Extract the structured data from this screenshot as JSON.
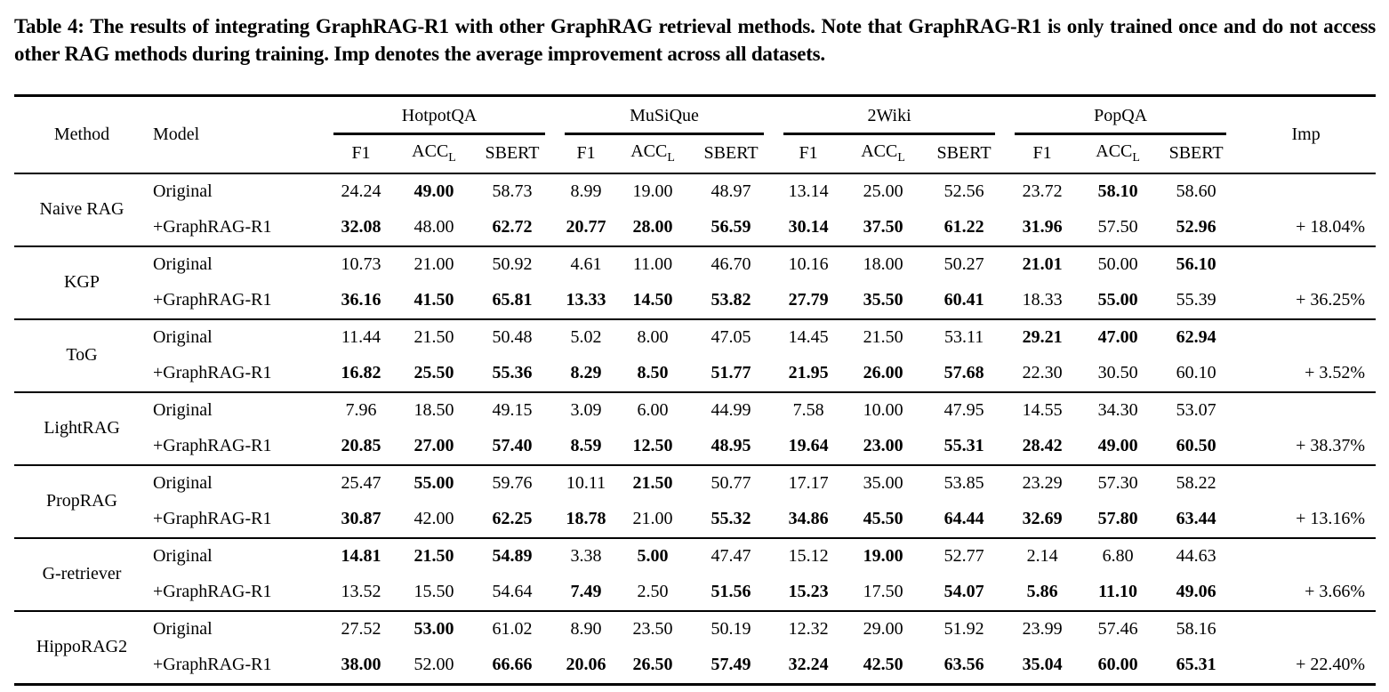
{
  "caption": "Table 4: The results of integrating GraphRAG-R1 with other GraphRAG retrieval methods. Note that GraphRAG-R1 is only trained once and do not access other RAG methods during training. Imp denotes the average improvement across all datasets.",
  "table": {
    "header": {
      "method": "Method",
      "model": "Model",
      "imp": "Imp",
      "groups": [
        {
          "label": "HotpotQA"
        },
        {
          "label": "MuSiQue"
        },
        {
          "label": "2Wiki"
        },
        {
          "label": "PopQA"
        }
      ],
      "sub_columns": [
        {
          "text": "F1",
          "sub": ""
        },
        {
          "text": "ACC",
          "sub": "L"
        },
        {
          "text": "SBERT",
          "sub": ""
        }
      ]
    },
    "rows": [
      {
        "method": "Naive RAG",
        "models": [
          {
            "label": "Original",
            "values": [
              "24.24",
              "49.00",
              "58.73",
              "8.99",
              "19.00",
              "48.97",
              "13.14",
              "25.00",
              "52.56",
              "23.72",
              "58.10",
              "58.60"
            ],
            "bold": [
              0,
              1,
              0,
              0,
              0,
              0,
              0,
              0,
              0,
              0,
              1,
              0
            ],
            "imp": ""
          },
          {
            "label": "+GraphRAG-R1",
            "values": [
              "32.08",
              "48.00",
              "62.72",
              "20.77",
              "28.00",
              "56.59",
              "30.14",
              "37.50",
              "61.22",
              "31.96",
              "57.50",
              "52.96"
            ],
            "bold": [
              1,
              0,
              1,
              1,
              1,
              1,
              1,
              1,
              1,
              1,
              0,
              1
            ],
            "imp": "+ 18.04%"
          }
        ]
      },
      {
        "method": "KGP",
        "models": [
          {
            "label": "Original",
            "values": [
              "10.73",
              "21.00",
              "50.92",
              "4.61",
              "11.00",
              "46.70",
              "10.16",
              "18.00",
              "50.27",
              "21.01",
              "50.00",
              "56.10"
            ],
            "bold": [
              0,
              0,
              0,
              0,
              0,
              0,
              0,
              0,
              0,
              1,
              0,
              1
            ],
            "imp": ""
          },
          {
            "label": "+GraphRAG-R1",
            "values": [
              "36.16",
              "41.50",
              "65.81",
              "13.33",
              "14.50",
              "53.82",
              "27.79",
              "35.50",
              "60.41",
              "18.33",
              "55.00",
              "55.39"
            ],
            "bold": [
              1,
              1,
              1,
              1,
              1,
              1,
              1,
              1,
              1,
              0,
              1,
              0
            ],
            "imp": "+ 36.25%"
          }
        ]
      },
      {
        "method": "ToG",
        "models": [
          {
            "label": "Original",
            "values": [
              "11.44",
              "21.50",
              "50.48",
              "5.02",
              "8.00",
              "47.05",
              "14.45",
              "21.50",
              "53.11",
              "29.21",
              "47.00",
              "62.94"
            ],
            "bold": [
              0,
              0,
              0,
              0,
              0,
              0,
              0,
              0,
              0,
              1,
              1,
              1
            ],
            "imp": ""
          },
          {
            "label": "+GraphRAG-R1",
            "values": [
              "16.82",
              "25.50",
              "55.36",
              "8.29",
              "8.50",
              "51.77",
              "21.95",
              "26.00",
              "57.68",
              "22.30",
              "30.50",
              "60.10"
            ],
            "bold": [
              1,
              1,
              1,
              1,
              1,
              1,
              1,
              1,
              1,
              0,
              0,
              0
            ],
            "imp": "+ 3.52%"
          }
        ]
      },
      {
        "method": "LightRAG",
        "models": [
          {
            "label": "Original",
            "values": [
              "7.96",
              "18.50",
              "49.15",
              "3.09",
              "6.00",
              "44.99",
              "7.58",
              "10.00",
              "47.95",
              "14.55",
              "34.30",
              "53.07"
            ],
            "bold": [
              0,
              0,
              0,
              0,
              0,
              0,
              0,
              0,
              0,
              0,
              0,
              0
            ],
            "imp": ""
          },
          {
            "label": "+GraphRAG-R1",
            "values": [
              "20.85",
              "27.00",
              "57.40",
              "8.59",
              "12.50",
              "48.95",
              "19.64",
              "23.00",
              "55.31",
              "28.42",
              "49.00",
              "60.50"
            ],
            "bold": [
              1,
              1,
              1,
              1,
              1,
              1,
              1,
              1,
              1,
              1,
              1,
              1
            ],
            "imp": "+ 38.37%"
          }
        ]
      },
      {
        "method": "PropRAG",
        "models": [
          {
            "label": "Original",
            "values": [
              "25.47",
              "55.00",
              "59.76",
              "10.11",
              "21.50",
              "50.77",
              "17.17",
              "35.00",
              "53.85",
              "23.29",
              "57.30",
              "58.22"
            ],
            "bold": [
              0,
              1,
              0,
              0,
              1,
              0,
              0,
              0,
              0,
              0,
              0,
              0
            ],
            "imp": ""
          },
          {
            "label": "+GraphRAG-R1",
            "values": [
              "30.87",
              "42.00",
              "62.25",
              "18.78",
              "21.00",
              "55.32",
              "34.86",
              "45.50",
              "64.44",
              "32.69",
              "57.80",
              "63.44"
            ],
            "bold": [
              1,
              0,
              1,
              1,
              0,
              1,
              1,
              1,
              1,
              1,
              1,
              1
            ],
            "imp": "+ 13.16%"
          }
        ]
      },
      {
        "method": "G-retriever",
        "models": [
          {
            "label": "Original",
            "values": [
              "14.81",
              "21.50",
              "54.89",
              "3.38",
              "5.00",
              "47.47",
              "15.12",
              "19.00",
              "52.77",
              "2.14",
              "6.80",
              "44.63"
            ],
            "bold": [
              1,
              1,
              1,
              0,
              1,
              0,
              0,
              1,
              0,
              0,
              0,
              0
            ],
            "imp": ""
          },
          {
            "label": "+GraphRAG-R1",
            "values": [
              "13.52",
              "15.50",
              "54.64",
              "7.49",
              "2.50",
              "51.56",
              "15.23",
              "17.50",
              "54.07",
              "5.86",
              "11.10",
              "49.06"
            ],
            "bold": [
              0,
              0,
              0,
              1,
              0,
              1,
              1,
              0,
              1,
              1,
              1,
              1
            ],
            "imp": "+ 3.66%"
          }
        ]
      },
      {
        "method": "HippoRAG2",
        "models": [
          {
            "label": "Original",
            "values": [
              "27.52",
              "53.00",
              "61.02",
              "8.90",
              "23.50",
              "50.19",
              "12.32",
              "29.00",
              "51.92",
              "23.99",
              "57.46",
              "58.16"
            ],
            "bold": [
              0,
              1,
              0,
              0,
              0,
              0,
              0,
              0,
              0,
              0,
              0,
              0
            ],
            "imp": ""
          },
          {
            "label": "+GraphRAG-R1",
            "values": [
              "38.00",
              "52.00",
              "66.66",
              "20.06",
              "26.50",
              "57.49",
              "32.24",
              "42.50",
              "63.56",
              "35.04",
              "60.00",
              "65.31"
            ],
            "bold": [
              1,
              0,
              1,
              1,
              1,
              1,
              1,
              1,
              1,
              1,
              1,
              1
            ],
            "imp": "+ 22.40%"
          }
        ]
      }
    ]
  }
}
